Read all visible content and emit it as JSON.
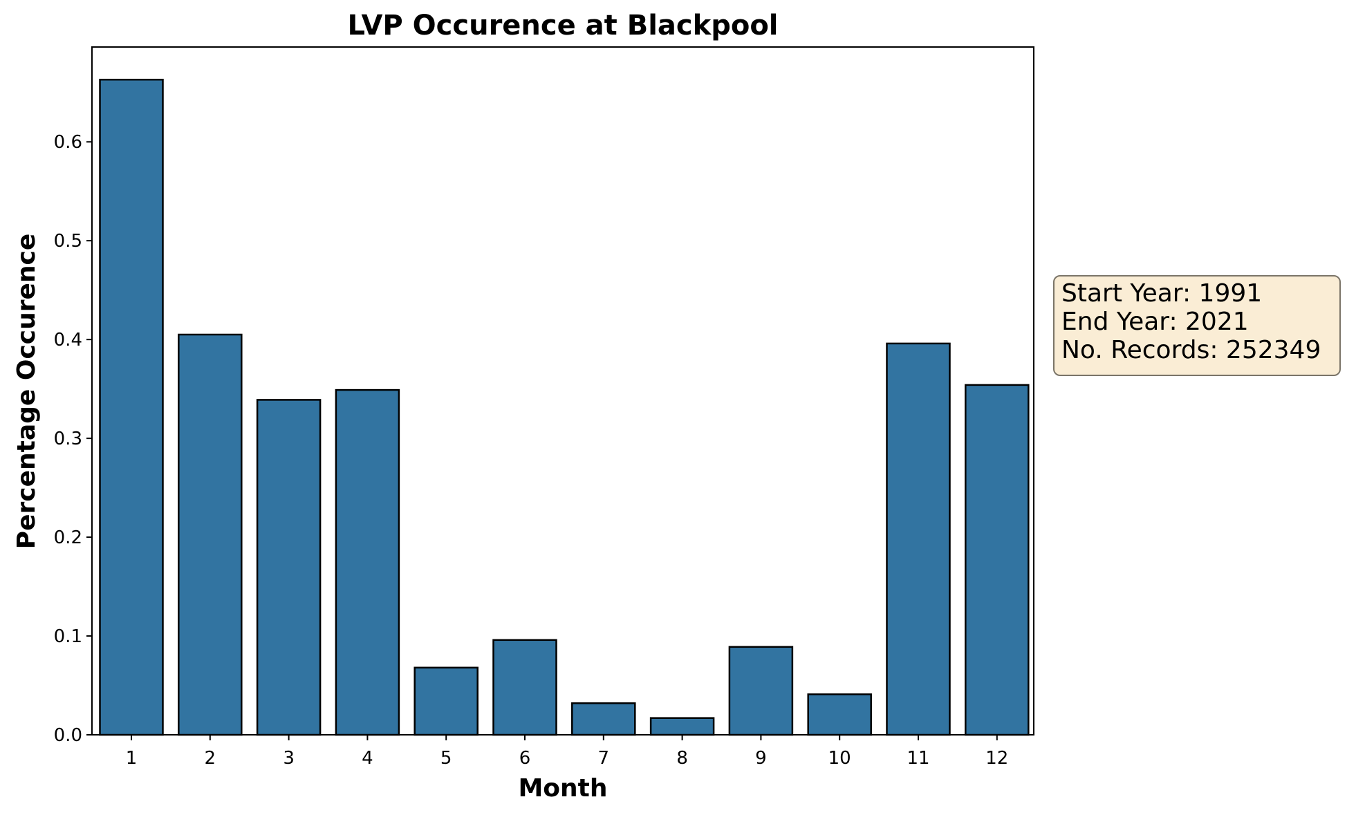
{
  "chart_data": {
    "type": "bar",
    "title": "LVP Occurence at Blackpool",
    "xlabel": "Month",
    "ylabel": "Percentage Occurence",
    "categories": [
      "1",
      "2",
      "3",
      "4",
      "5",
      "6",
      "7",
      "8",
      "9",
      "10",
      "11",
      "12"
    ],
    "values": [
      0.663,
      0.405,
      0.339,
      0.349,
      0.068,
      0.096,
      0.032,
      0.017,
      0.089,
      0.041,
      0.396,
      0.354
    ],
    "yticks": [
      "0.0",
      "0.1",
      "0.2",
      "0.3",
      "0.4",
      "0.5",
      "0.6"
    ],
    "ylim": [
      0,
      0.696
    ],
    "grid": false,
    "legend": "none",
    "bar_color": "#3274a1",
    "edge_color": "#000000"
  },
  "info_box": {
    "lines": [
      "Start Year: 1991",
      "End Year: 2021",
      "No. Records: 252349"
    ],
    "background": "#f5deb3",
    "border_color": "#7a7468"
  }
}
